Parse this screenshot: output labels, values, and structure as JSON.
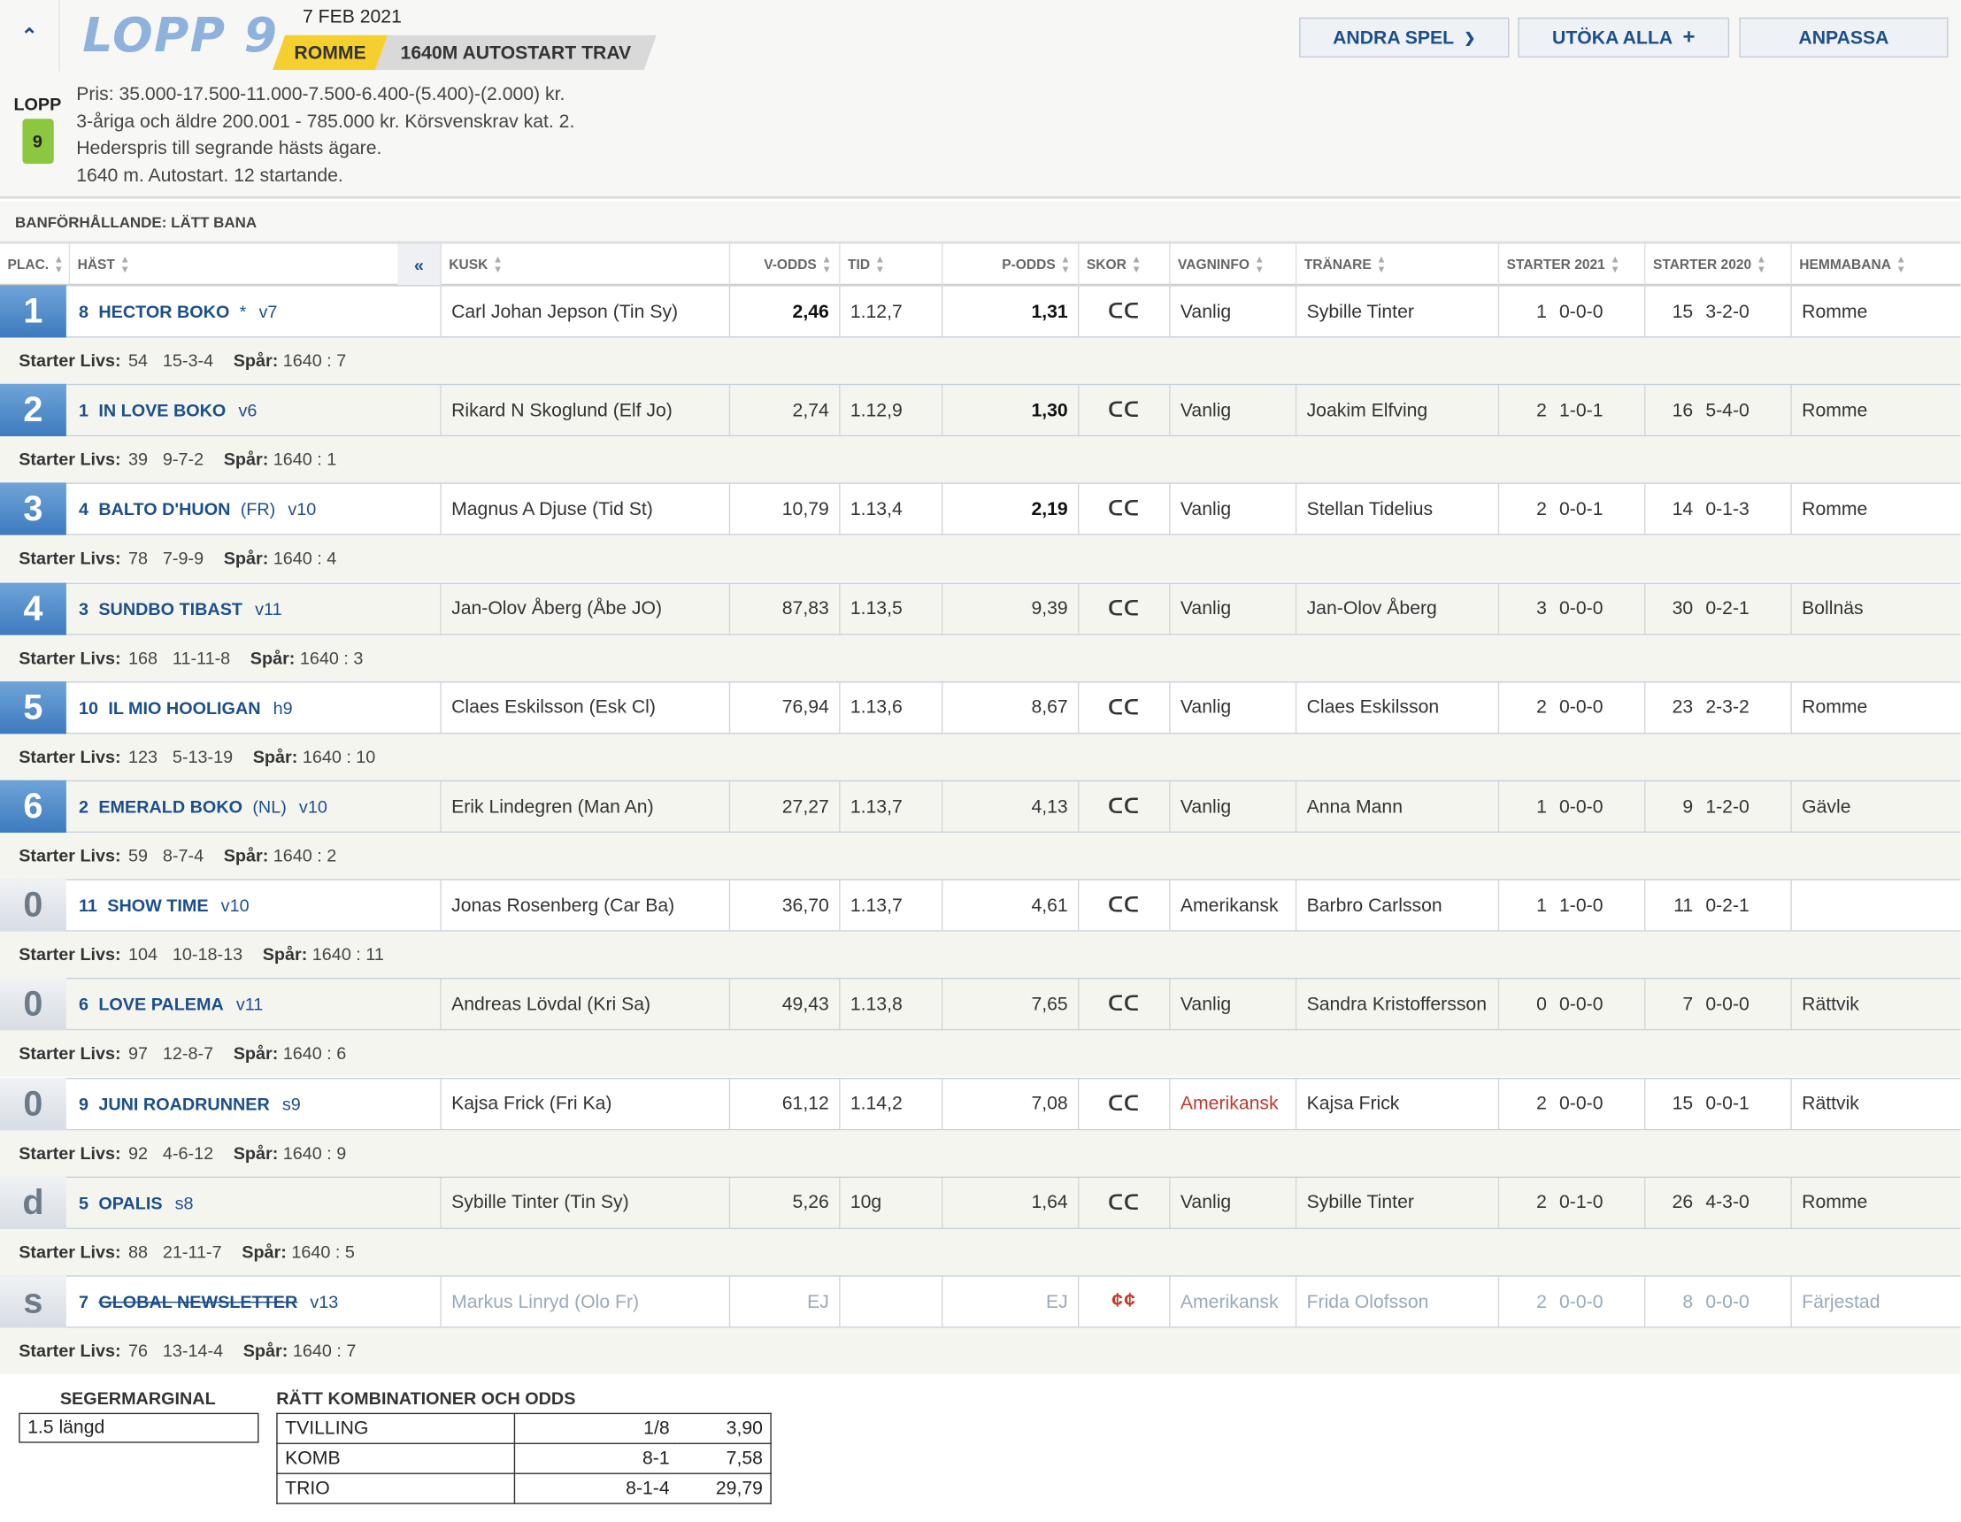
{
  "header": {
    "title": "LOPP 9",
    "date": "7 FEB 2021",
    "track": "ROMME",
    "distance": "1640M AUTOSTART TRAV",
    "buttons": {
      "other_games": "ANDRA SPEL",
      "expand_all": "UTÖKA ALLA",
      "customize": "ANPASSA"
    }
  },
  "info": {
    "lopp_label": "LOPP",
    "lopp_number": "9",
    "lines": [
      "Pris: 35.000-17.500-11.000-7.500-6.400-(5.400)-(2.000) kr.",
      "3-åriga och äldre 200.001 - 785.000 kr. Körsvenskrav kat. 2.",
      "Hederspris till segrande hästs ägare.",
      "1640 m. Autostart. 12 startande."
    ]
  },
  "track_condition": "BANFÖRHÅLLANDE: LÄTT BANA",
  "columns": {
    "plac": "PLAC.",
    "hast": "HÄST",
    "collapse": "«",
    "kusk": "KUSK",
    "vodds": "V-ODDS",
    "tid": "TID",
    "podds": "P-ODDS",
    "skor": "SKOR",
    "vagn": "VAGNINFO",
    "tranare": "TRÄNARE",
    "s2021": "STARTER 2021",
    "s2020": "STARTER 2020",
    "hemma": "HEMMABANA"
  },
  "labels": {
    "starter_livs": "Starter Livs:",
    "spar": "Spår:"
  },
  "rows": [
    {
      "place": "1",
      "num": "8",
      "name": "HECTOR BOKO",
      "extra": "*",
      "age": "v7",
      "driver": "Carl Johan Jepson (Tin Sy)",
      "vodds": "2,46",
      "vbold": true,
      "tid": "1.12,7",
      "podds": "1,31",
      "pbold": true,
      "shoe": "ᑕᑕ",
      "vagn": "Vanlig",
      "trainer": "Sybille Tinter",
      "s21a": "1",
      "s21b": "0-0-0",
      "s20a": "15",
      "s20b": "3-2-0",
      "home": "Romme",
      "livs": "54",
      "livsr": "15-3-4",
      "spar": "1640 : 7"
    },
    {
      "place": "2",
      "num": "1",
      "name": "IN LOVE BOKO",
      "extra": "",
      "age": "v6",
      "driver": "Rikard N Skoglund (Elf Jo)",
      "vodds": "2,74",
      "vbold": false,
      "tid": "1.12,9",
      "podds": "1,30",
      "pbold": true,
      "shoe": "ᑕᑕ",
      "vagn": "Vanlig",
      "trainer": "Joakim Elfving",
      "s21a": "2",
      "s21b": "1-0-1",
      "s20a": "16",
      "s20b": "5-4-0",
      "home": "Romme",
      "livs": "39",
      "livsr": "9-7-2",
      "spar": "1640 : 1"
    },
    {
      "place": "3",
      "num": "4",
      "name": "BALTO D'HUON",
      "extra": "(FR)",
      "age": "v10",
      "driver": "Magnus A Djuse (Tid St)",
      "vodds": "10,79",
      "vbold": false,
      "tid": "1.13,4",
      "podds": "2,19",
      "pbold": true,
      "shoe": "ᑕᑕ",
      "vagn": "Vanlig",
      "trainer": "Stellan Tidelius",
      "s21a": "2",
      "s21b": "0-0-1",
      "s20a": "14",
      "s20b": "0-1-3",
      "home": "Romme",
      "livs": "78",
      "livsr": "7-9-9",
      "spar": "1640 : 4"
    },
    {
      "place": "4",
      "num": "3",
      "name": "SUNDBO TIBAST",
      "extra": "",
      "age": "v11",
      "driver": "Jan-Olov Åberg (Åbe JO)",
      "vodds": "87,83",
      "vbold": false,
      "tid": "1.13,5",
      "podds": "9,39",
      "pbold": false,
      "shoe": "ᑕᑕ",
      "vagn": "Vanlig",
      "trainer": "Jan-Olov Åberg",
      "s21a": "3",
      "s21b": "0-0-0",
      "s20a": "30",
      "s20b": "0-2-1",
      "home": "Bollnäs",
      "livs": "168",
      "livsr": "11-11-8",
      "spar": "1640 : 3"
    },
    {
      "place": "5",
      "num": "10",
      "name": "IL MIO HOOLIGAN",
      "extra": "",
      "age": "h9",
      "driver": "Claes Eskilsson (Esk Cl)",
      "vodds": "76,94",
      "vbold": false,
      "tid": "1.13,6",
      "podds": "8,67",
      "pbold": false,
      "shoe": "ᑕᑕ",
      "vagn": "Vanlig",
      "trainer": "Claes Eskilsson",
      "s21a": "2",
      "s21b": "0-0-0",
      "s20a": "23",
      "s20b": "2-3-2",
      "home": "Romme",
      "livs": "123",
      "livsr": "5-13-19",
      "spar": "1640 : 10"
    },
    {
      "place": "6",
      "num": "2",
      "name": "EMERALD BOKO",
      "extra": "(NL)",
      "age": "v10",
      "driver": "Erik Lindegren (Man An)",
      "vodds": "27,27",
      "vbold": false,
      "tid": "1.13,7",
      "podds": "4,13",
      "pbold": false,
      "shoe": "ᑕᑕ",
      "vagn": "Vanlig",
      "trainer": "Anna Mann",
      "s21a": "1",
      "s21b": "0-0-0",
      "s20a": "9",
      "s20b": "1-2-0",
      "home": "Gävle",
      "livs": "59",
      "livsr": "8-7-4",
      "spar": "1640 : 2"
    },
    {
      "place": "0",
      "num": "11",
      "name": "SHOW TIME",
      "extra": "",
      "age": "v10",
      "driver": "Jonas Rosenberg (Car Ba)",
      "vodds": "36,70",
      "vbold": false,
      "tid": "1.13,7",
      "podds": "4,61",
      "pbold": false,
      "shoe": "ᑕᑕ",
      "vagn": "Amerikansk",
      "trainer": "Barbro Carlsson",
      "s21a": "1",
      "s21b": "1-0-0",
      "s20a": "11",
      "s20b": "0-2-1",
      "home": "",
      "livs": "104",
      "livsr": "10-18-13",
      "spar": "1640 : 11"
    },
    {
      "place": "0",
      "num": "6",
      "name": "LOVE PALEMA",
      "extra": "",
      "age": "v11",
      "driver": "Andreas Lövdal (Kri Sa)",
      "vodds": "49,43",
      "vbold": false,
      "tid": "1.13,8",
      "podds": "7,65",
      "pbold": false,
      "shoe": "ᑕᑕ",
      "vagn": "Vanlig",
      "trainer": "Sandra Kristoffersson",
      "s21a": "0",
      "s21b": "0-0-0",
      "s20a": "7",
      "s20b": "0-0-0",
      "home": "Rättvik",
      "livs": "97",
      "livsr": "12-8-7",
      "spar": "1640 : 6"
    },
    {
      "place": "0",
      "num": "9",
      "name": "JUNI ROADRUNNER",
      "extra": "",
      "age": "s9",
      "driver": "Kajsa Frick (Fri Ka)",
      "vodds": "61,12",
      "vbold": false,
      "tid": "1.14,2",
      "podds": "7,08",
      "pbold": false,
      "shoe": "ᑕᑕ",
      "vagn": "Amerikansk",
      "vagnred": true,
      "trainer": "Kajsa Frick",
      "s21a": "2",
      "s21b": "0-0-0",
      "s20a": "15",
      "s20b": "0-0-1",
      "home": "Rättvik",
      "livs": "92",
      "livsr": "4-6-12",
      "spar": "1640 : 9"
    },
    {
      "place": "d",
      "num": "5",
      "name": "OPALIS",
      "extra": "",
      "age": "s8",
      "driver": "Sybille Tinter (Tin Sy)",
      "vodds": "5,26",
      "vbold": false,
      "tid": "10g",
      "podds": "1,64",
      "pbold": false,
      "shoe": "ᑕᑕ",
      "vagn": "Vanlig",
      "trainer": "Sybille Tinter",
      "s21a": "2",
      "s21b": "0-1-0",
      "s20a": "26",
      "s20b": "4-3-0",
      "home": "Romme",
      "livs": "88",
      "livsr": "21-11-7",
      "spar": "1640 : 5"
    },
    {
      "place": "s",
      "num": "7",
      "name": "GLOBAL NEWSLETTER",
      "extra": "",
      "age": "v13",
      "driver": "Markus Linryd (Olo Fr)",
      "vodds": "EJ",
      "vbold": false,
      "tid": "",
      "podds": "EJ",
      "pbold": false,
      "shoe": "¢¢",
      "shoered": true,
      "vagn": "Amerikansk",
      "trainer": "Frida Olofsson",
      "s21a": "2",
      "s21b": "0-0-0",
      "s20a": "8",
      "s20b": "0-0-0",
      "home": "Färjestad",
      "scratched": true,
      "livs": "76",
      "livsr": "13-14-4",
      "spar": "1640 : 7"
    }
  ],
  "footer": {
    "margin_title": "SEGERMARGINAL",
    "margin_value": "1.5 längd",
    "combo_title": "RÄTT KOMBINATIONER OCH ODDS",
    "combos": [
      {
        "type": "TVILLING",
        "combo": "1/8",
        "odds": "3,90"
      },
      {
        "type": "KOMB",
        "combo": "8-1",
        "odds": "7,58"
      },
      {
        "type": "TRIO",
        "combo": "8-1-4",
        "odds": "29,79"
      }
    ]
  }
}
